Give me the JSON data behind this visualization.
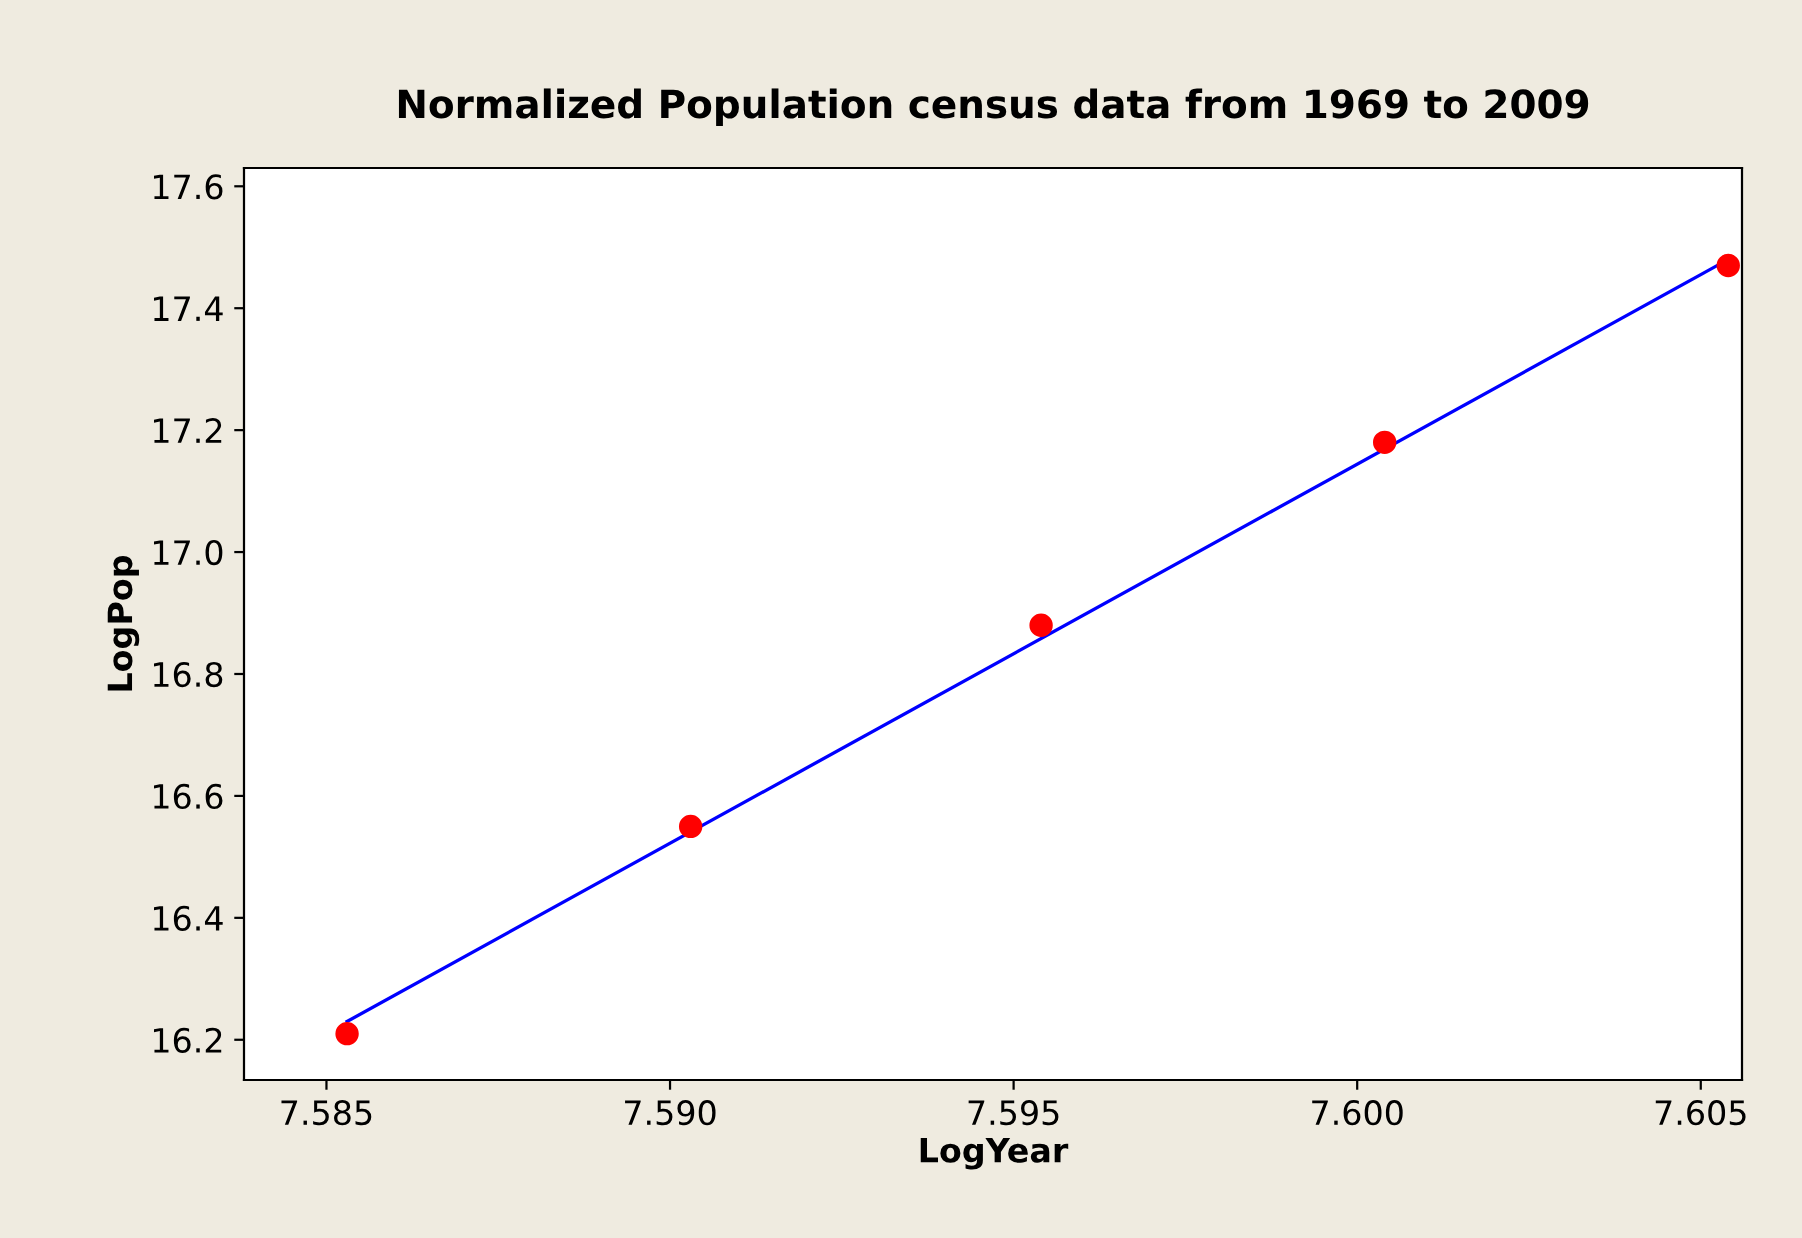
{
  "chart_data": {
    "type": "scatter",
    "title": "Normalized Population census data from 1969 to 2009",
    "xlabel": "LogYear",
    "ylabel": "LogPop",
    "series": [
      {
        "color": "#ff0000",
        "marker": "circle",
        "x": [
          7.5853,
          7.5903,
          7.5954,
          7.6004,
          7.6054
        ],
        "values": [
          16.21,
          16.55,
          16.88,
          17.18,
          17.47
        ]
      },
      {
        "type": "line",
        "color": "#0000ff",
        "marker": "none",
        "x": [
          7.5853,
          7.6054
        ],
        "values": [
          16.23,
          17.48
        ]
      }
    ],
    "xlim": [
      7.5838,
      7.6056
    ],
    "ylim": [
      16.134,
      17.63
    ],
    "xticks": [
      {
        "value": 7.585,
        "label": "7.585"
      },
      {
        "value": 7.59,
        "label": "7.590"
      },
      {
        "value": 7.595,
        "label": "7.595"
      },
      {
        "value": 7.6,
        "label": "7.600"
      },
      {
        "value": 7.605,
        "label": "7.605"
      }
    ],
    "yticks": [
      {
        "value": 16.2,
        "label": "16.2"
      },
      {
        "value": 16.4,
        "label": "16.4"
      },
      {
        "value": 16.6,
        "label": "16.6"
      },
      {
        "value": 16.8,
        "label": "16.8"
      },
      {
        "value": 17.0,
        "label": "17.0"
      },
      {
        "value": 17.2,
        "label": "17.2"
      },
      {
        "value": 17.4,
        "label": "17.4"
      },
      {
        "value": 17.6,
        "label": "17.6"
      }
    ],
    "grid": false,
    "legend": false
  }
}
